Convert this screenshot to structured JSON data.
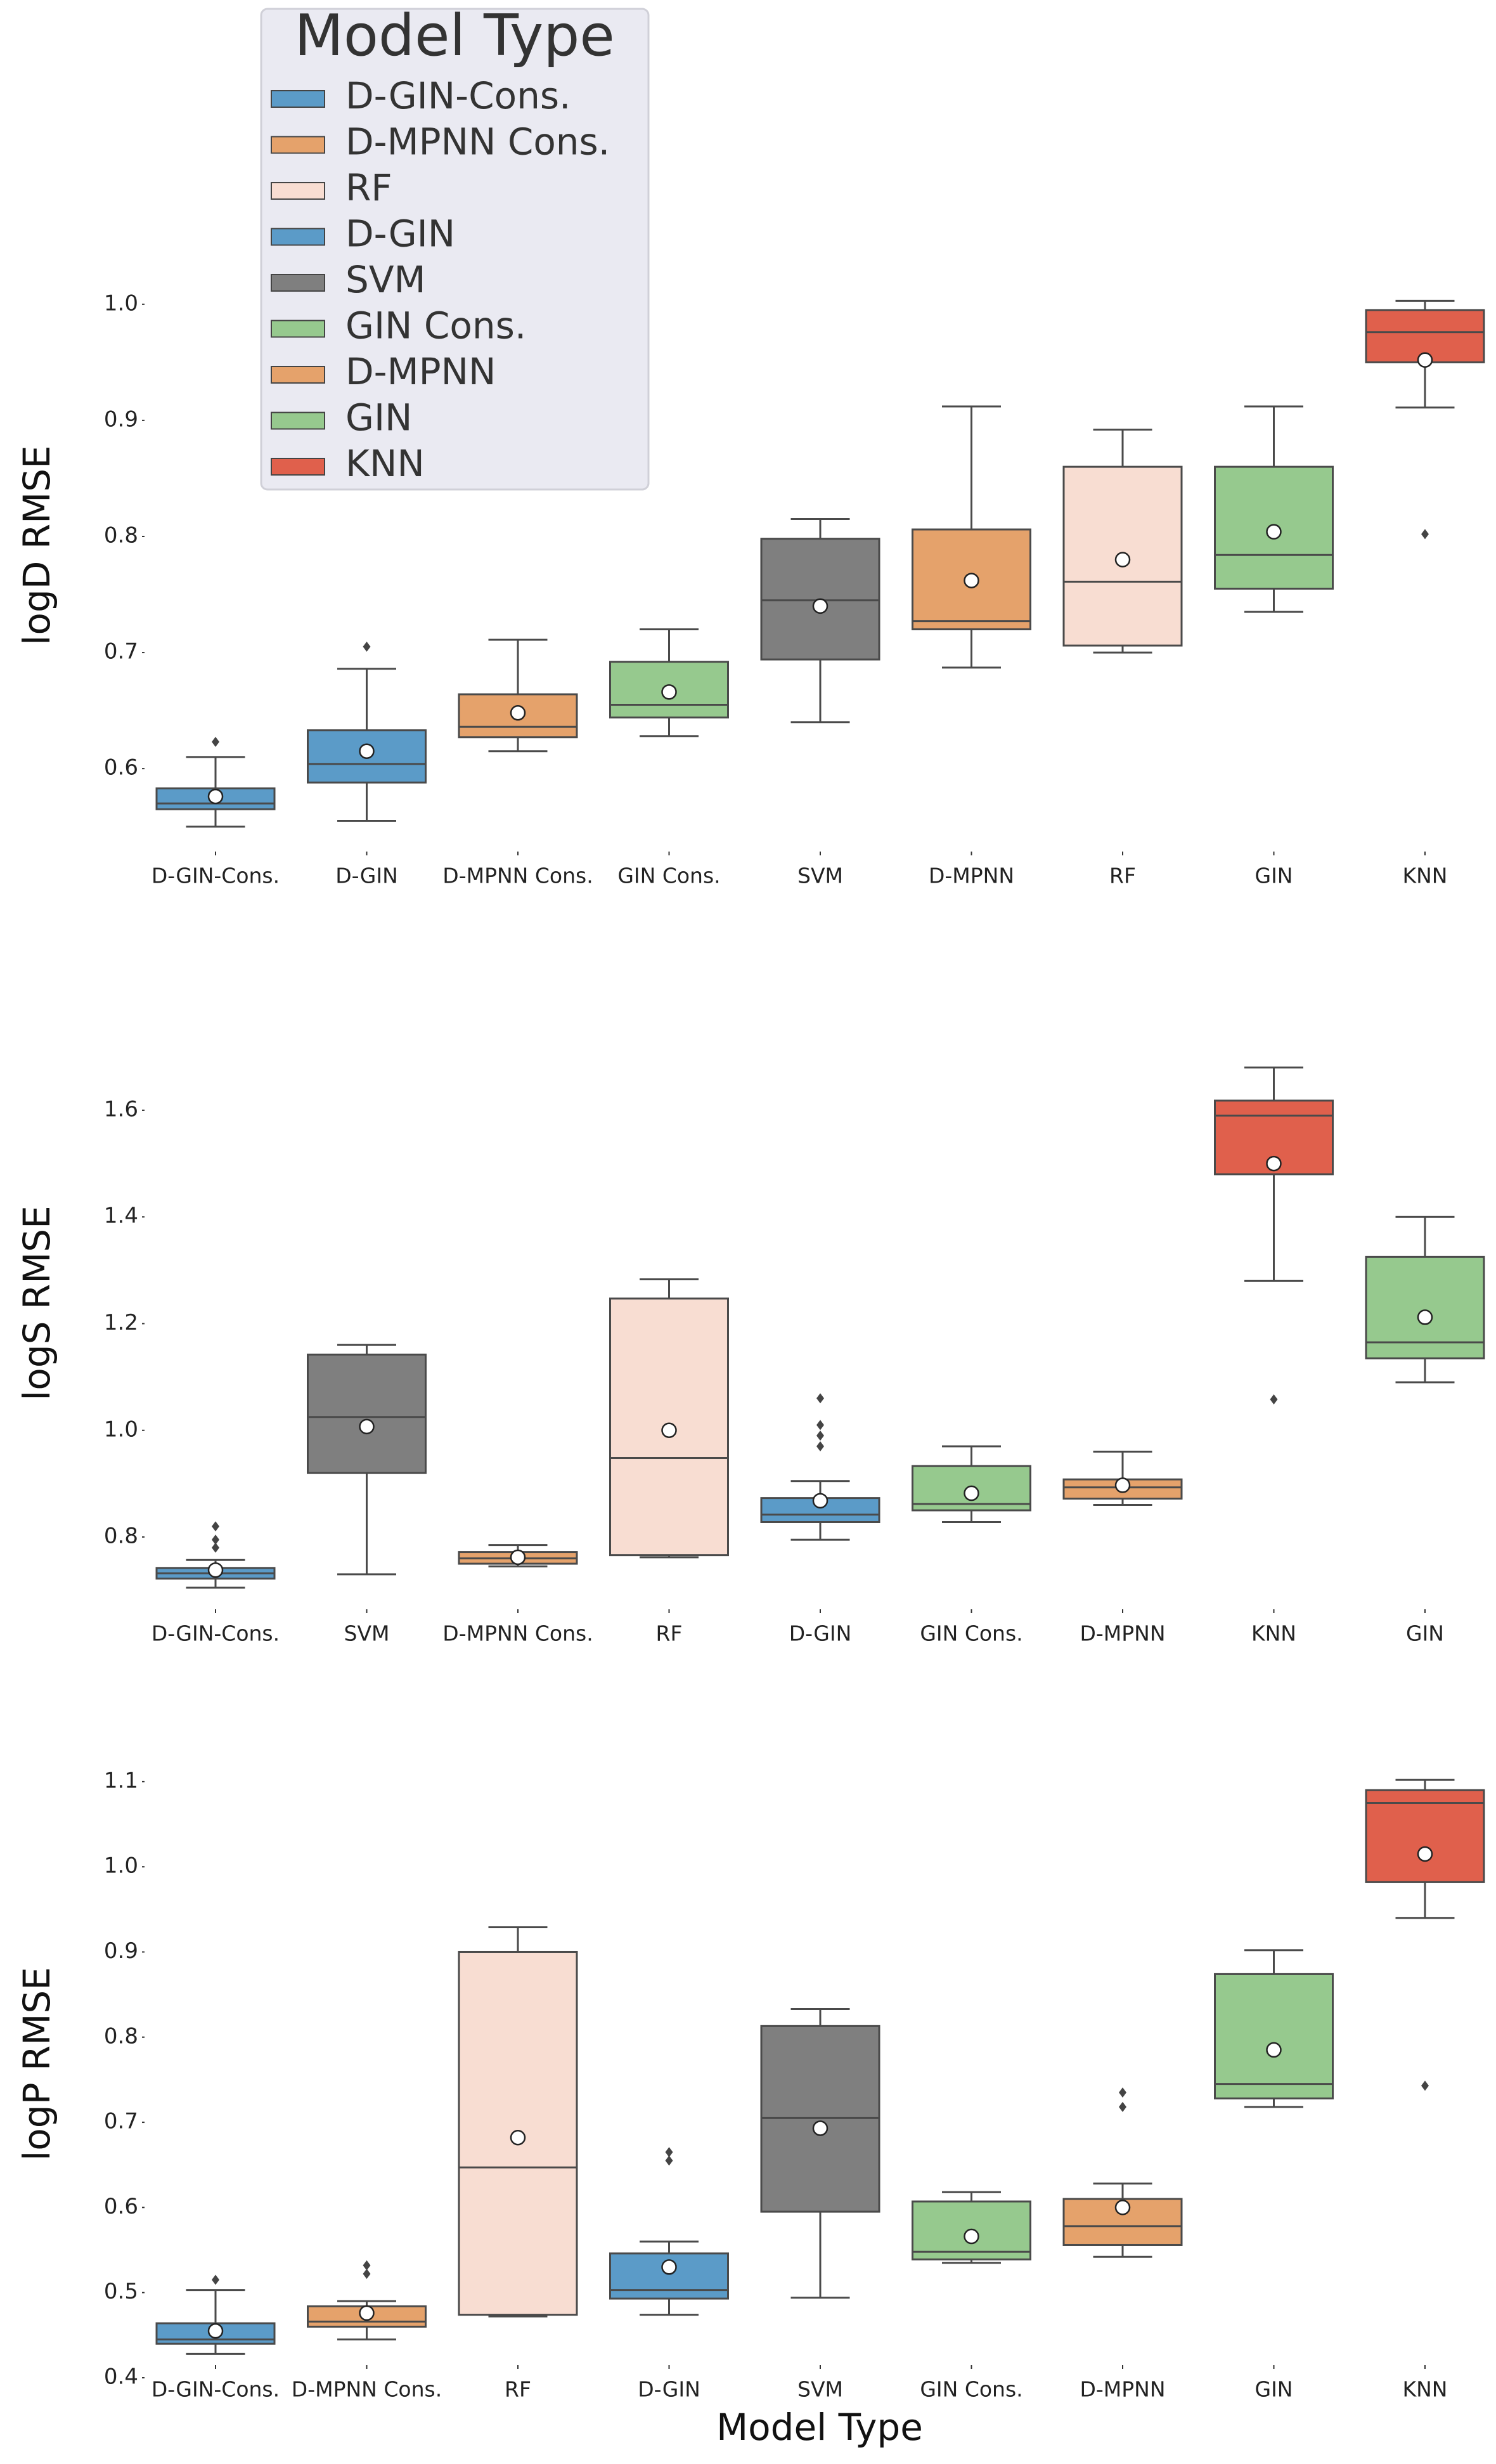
{
  "chart_data": [
    {
      "type": "box",
      "ylabel": "logD RMSE",
      "xlabel": "",
      "ylim": [
        0.54,
        1.06
      ],
      "yticks": [
        0.6,
        0.7,
        0.8,
        0.9,
        1.0
      ],
      "ytick_labels": [
        "0.6",
        "0.7",
        "0.8",
        "0.9",
        "1.0"
      ],
      "categories": [
        "D-GIN-Cons.",
        "D-GIN",
        "D-MPNN Cons.",
        "GIN Cons.",
        "SVM",
        "D-MPNN",
        "RF",
        "GIN",
        "KNN"
      ],
      "boxes": [
        {
          "model": "D-GIN-Cons.",
          "whisker_low": 0.55,
          "q1": 0.565,
          "median": 0.57,
          "q3": 0.583,
          "whisker_high": 0.61,
          "mean": 0.576,
          "outliers": [
            0.623
          ]
        },
        {
          "model": "D-GIN",
          "whisker_low": 0.555,
          "q1": 0.588,
          "median": 0.604,
          "q3": 0.633,
          "whisker_high": 0.686,
          "mean": 0.615,
          "outliers": [
            0.705
          ]
        },
        {
          "model": "D-MPNN Cons.",
          "whisker_low": 0.615,
          "q1": 0.627,
          "median": 0.636,
          "q3": 0.664,
          "whisker_high": 0.711,
          "mean": 0.648,
          "outliers": []
        },
        {
          "model": "GIN Cons.",
          "whisker_low": 0.628,
          "q1": 0.644,
          "median": 0.655,
          "q3": 0.692,
          "whisker_high": 0.72,
          "mean": 0.666,
          "outliers": []
        },
        {
          "model": "SVM",
          "whisker_low": 0.64,
          "q1": 0.694,
          "median": 0.745,
          "q3": 0.798,
          "whisker_high": 0.815,
          "mean": 0.74,
          "outliers": []
        },
        {
          "model": "D-MPNN",
          "whisker_low": 0.687,
          "q1": 0.72,
          "median": 0.727,
          "q3": 0.806,
          "whisker_high": 0.912,
          "mean": 0.762,
          "outliers": []
        },
        {
          "model": "RF",
          "whisker_low": 0.7,
          "q1": 0.706,
          "median": 0.761,
          "q3": 0.86,
          "whisker_high": 0.892,
          "mean": 0.78,
          "outliers": []
        },
        {
          "model": "GIN",
          "whisker_low": 0.735,
          "q1": 0.755,
          "median": 0.784,
          "q3": 0.86,
          "whisker_high": 0.912,
          "mean": 0.804,
          "outliers": []
        },
        {
          "model": "KNN",
          "whisker_low": 0.911,
          "q1": 0.95,
          "median": 0.976,
          "q3": 0.995,
          "whisker_high": 1.003,
          "mean": 0.952,
          "outliers": [
            0.802
          ]
        }
      ]
    },
    {
      "type": "box",
      "ylabel": "logS RMSE",
      "xlabel": "",
      "ylim": [
        0.68,
        1.72
      ],
      "yticks": [
        0.8,
        1.0,
        1.2,
        1.4,
        1.6
      ],
      "ytick_labels": [
        "0.8",
        "1.0",
        "1.2",
        "1.4",
        "1.6"
      ],
      "categories": [
        "D-GIN-Cons.",
        "SVM",
        "D-MPNN Cons.",
        "RF",
        "D-GIN",
        "GIN Cons.",
        "D-MPNN",
        "KNN",
        "GIN"
      ],
      "boxes": [
        {
          "model": "D-GIN-Cons.",
          "whisker_low": 0.705,
          "q1": 0.722,
          "median": 0.732,
          "q3": 0.742,
          "whisker_high": 0.757,
          "mean": 0.738,
          "outliers": [
            0.78,
            0.795,
            0.82
          ]
        },
        {
          "model": "SVM",
          "whisker_low": 0.73,
          "q1": 0.92,
          "median": 1.025,
          "q3": 1.142,
          "whisker_high": 1.16,
          "mean": 1.007,
          "outliers": []
        },
        {
          "model": "D-MPNN Cons.",
          "whisker_low": 0.745,
          "q1": 0.75,
          "median": 0.76,
          "q3": 0.772,
          "whisker_high": 0.785,
          "mean": 0.762,
          "outliers": []
        },
        {
          "model": "RF",
          "whisker_low": 0.762,
          "q1": 0.766,
          "median": 0.948,
          "q3": 1.247,
          "whisker_high": 1.283,
          "mean": 1.0,
          "outliers": []
        },
        {
          "model": "D-GIN",
          "whisker_low": 0.795,
          "q1": 0.828,
          "median": 0.842,
          "q3": 0.873,
          "whisker_high": 0.905,
          "mean": 0.868,
          "outliers": [
            0.97,
            0.99,
            1.01,
            1.06
          ]
        },
        {
          "model": "GIN Cons.",
          "whisker_low": 0.828,
          "q1": 0.85,
          "median": 0.862,
          "q3": 0.933,
          "whisker_high": 0.97,
          "mean": 0.882,
          "outliers": []
        },
        {
          "model": "D-MPNN",
          "whisker_low": 0.86,
          "q1": 0.872,
          "median": 0.893,
          "q3": 0.908,
          "whisker_high": 0.96,
          "mean": 0.897,
          "outliers": []
        },
        {
          "model": "KNN",
          "whisker_low": 1.28,
          "q1": 1.48,
          "median": 1.59,
          "q3": 1.618,
          "whisker_high": 1.68,
          "mean": 1.5,
          "outliers": [
            1.058
          ]
        },
        {
          "model": "GIN",
          "whisker_low": 1.09,
          "q1": 1.135,
          "median": 1.165,
          "q3": 1.325,
          "whisker_high": 1.4,
          "mean": 1.212,
          "outliers": []
        }
      ]
    },
    {
      "type": "box",
      "ylabel": "logP RMSE",
      "xlabel": "Model Type",
      "ylim": [
        0.4,
        1.12
      ],
      "yticks": [
        0.4,
        0.5,
        0.6,
        0.7,
        0.8,
        0.9,
        1.0,
        1.1
      ],
      "ytick_labels": [
        "0.4",
        "0.5",
        "0.6",
        "0.7",
        "0.8",
        "0.9",
        "1.0",
        "1.1"
      ],
      "categories": [
        "D-GIN-Cons.",
        "D-MPNN Cons.",
        "RF",
        "D-GIN",
        "SVM",
        "GIN Cons.",
        "D-MPNN",
        "GIN",
        "KNN"
      ],
      "boxes": [
        {
          "model": "D-GIN-Cons.",
          "whisker_low": 0.428,
          "q1": 0.44,
          "median": 0.445,
          "q3": 0.464,
          "whisker_high": 0.503,
          "mean": 0.455,
          "outliers": [
            0.515
          ]
        },
        {
          "model": "D-MPNN Cons.",
          "whisker_low": 0.445,
          "q1": 0.46,
          "median": 0.466,
          "q3": 0.484,
          "whisker_high": 0.49,
          "mean": 0.476,
          "outliers": [
            0.522,
            0.532
          ]
        },
        {
          "model": "RF",
          "whisker_low": 0.472,
          "q1": 0.474,
          "median": 0.647,
          "q3": 0.9,
          "whisker_high": 0.929,
          "mean": 0.682,
          "outliers": []
        },
        {
          "model": "D-GIN",
          "whisker_low": 0.474,
          "q1": 0.493,
          "median": 0.503,
          "q3": 0.546,
          "whisker_high": 0.56,
          "mean": 0.53,
          "outliers": [
            0.655,
            0.665
          ]
        },
        {
          "model": "SVM",
          "whisker_low": 0.494,
          "q1": 0.595,
          "median": 0.705,
          "q3": 0.813,
          "whisker_high": 0.833,
          "mean": 0.693,
          "outliers": []
        },
        {
          "model": "GIN Cons.",
          "whisker_low": 0.535,
          "q1": 0.539,
          "median": 0.548,
          "q3": 0.607,
          "whisker_high": 0.618,
          "mean": 0.566,
          "outliers": []
        },
        {
          "model": "D-MPNN",
          "whisker_low": 0.542,
          "q1": 0.556,
          "median": 0.578,
          "q3": 0.61,
          "whisker_high": 0.628,
          "mean": 0.6,
          "outliers": [
            0.718,
            0.735
          ]
        },
        {
          "model": "GIN",
          "whisker_low": 0.718,
          "q1": 0.728,
          "median": 0.745,
          "q3": 0.874,
          "whisker_high": 0.902,
          "mean": 0.785,
          "outliers": []
        },
        {
          "model": "KNN",
          "whisker_low": 0.94,
          "q1": 0.982,
          "median": 1.075,
          "q3": 1.09,
          "whisker_high": 1.102,
          "mean": 1.015,
          "outliers": [
            0.743
          ]
        }
      ]
    }
  ],
  "legend": {
    "title": "Model Type",
    "placement": "upper-left of top panel",
    "items": [
      {
        "label": "D-GIN-Cons.",
        "color": "#5b9bc8"
      },
      {
        "label": "D-MPNN Cons.",
        "color": "#e5a26b"
      },
      {
        "label": "RF",
        "color": "#f8ddd2"
      },
      {
        "label": "D-GIN",
        "color": "#5b9bc8"
      },
      {
        "label": "SVM",
        "color": "#7f7f7f"
      },
      {
        "label": "GIN Cons.",
        "color": "#96c98e"
      },
      {
        "label": "D-MPNN",
        "color": "#e5a26b"
      },
      {
        "label": "GIN",
        "color": "#96c98e"
      },
      {
        "label": "KNN",
        "color": "#e0604c"
      }
    ]
  },
  "colors": {
    "D-GIN-Cons.": "#5b9bc8",
    "D-GIN": "#5b9bc8",
    "D-MPNN Cons.": "#e5a26b",
    "D-MPNN": "#e5a26b",
    "RF": "#f8ddd2",
    "SVM": "#7f7f7f",
    "GIN Cons.": "#96c98e",
    "GIN": "#96c98e",
    "KNN": "#e0604c",
    "edge": "#4a4a4a",
    "legend_bg": "#eaeaf2"
  }
}
